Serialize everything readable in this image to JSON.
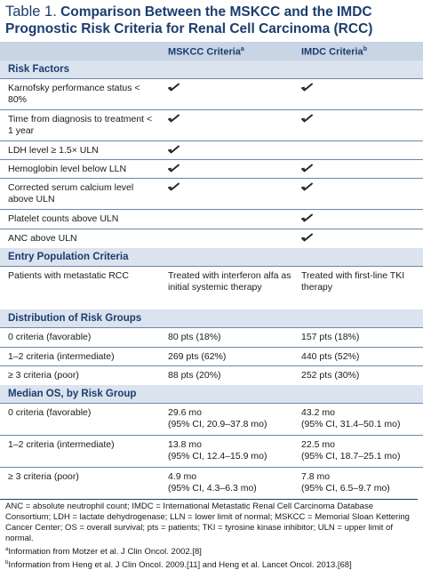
{
  "title": {
    "number": "Table 1.",
    "text": "Comparison Between the MSKCC and the IMDC Prognostic Risk Criteria for Renal Cell Carcinoma (RCC)"
  },
  "columns": {
    "col1": "MSKCC Criteria",
    "col1_sup": "a",
    "col2": "IMDC Criteria",
    "col2_sup": "b"
  },
  "sections": {
    "risk_factors": "Risk Factors",
    "entry": "Entry Population Criteria",
    "distribution": "Distribution of Risk Groups",
    "median_os": "Median OS, by Risk Group"
  },
  "risk_factors": [
    {
      "label": "Karnofsky performance status < 80%",
      "mskcc": true,
      "imdc": true
    },
    {
      "label": "Time from diagnosis to treatment < 1 year",
      "mskcc": true,
      "imdc": true
    },
    {
      "label": "LDH level ≥ 1.5× ULN",
      "mskcc": true,
      "imdc": false
    },
    {
      "label": "Hemoglobin level below LLN",
      "mskcc": true,
      "imdc": true
    },
    {
      "label": "Corrected serum calcium level above ULN",
      "mskcc": true,
      "imdc": true
    },
    {
      "label": "Platelet counts above ULN",
      "mskcc": false,
      "imdc": true
    },
    {
      "label": "ANC above ULN",
      "mskcc": false,
      "imdc": true
    }
  ],
  "entry": [
    {
      "label": "Patients with metastatic RCC",
      "mskcc": "Treated with interferon alfa as initial systemic therapy",
      "imdc": "Treated with first-line TKI therapy"
    }
  ],
  "distribution": [
    {
      "label": "0 criteria (favorable)",
      "mskcc": "80 pts (18%)",
      "imdc": "157 pts (18%)"
    },
    {
      "label": "1–2 criteria (intermediate)",
      "mskcc": "269 pts (62%)",
      "imdc": "440 pts (52%)"
    },
    {
      "label": "≥ 3 criteria (poor)",
      "mskcc": "88 pts (20%)",
      "imdc": "252 pts (30%)"
    }
  ],
  "median_os": [
    {
      "label": "0 criteria (favorable)",
      "mskcc": "29.6 mo",
      "mskcc_ci": "(95% CI, 20.9–37.8 mo)",
      "imdc": "43.2 mo",
      "imdc_ci": "(95% CI, 31.4–50.1 mo)"
    },
    {
      "label": "1–2 criteria (intermediate)",
      "mskcc": "13.8 mo",
      "mskcc_ci": "(95% CI, 12.4–15.9 mo)",
      "imdc": "22.5 mo",
      "imdc_ci": "(95% CI, 18.7–25.1 mo)"
    },
    {
      "label": "≥ 3 criteria (poor)",
      "mskcc": "4.9 mo",
      "mskcc_ci": "(95% CI, 4.3–6.3 mo)",
      "imdc": "7.8 mo",
      "imdc_ci": "(95% CI, 6.5–9.7 mo)"
    }
  ],
  "footnotes": {
    "abbrev": "ANC = absolute neutrophil count; IMDC = International Metastatic Renal Cell Carcinoma Database Consortium; LDH = lactate dehydrogenase; LLN = lower limit of normal; MSKCC = Memorial Sloan Kettering Cancer Center; OS = overall survival; pts = patients; TKI = tyrosine kinase inhibitor; ULN = upper limit of normal.",
    "a_mark": "a",
    "a_text": "Information from Motzer et al. J Clin Oncol. 2002.[8]",
    "b_mark": "b",
    "b_text": "Information from Heng et al. J Clin Oncol. 2009.[11] and Heng et al. Lancet Oncol. 2013.[68]"
  },
  "colors": {
    "header_bg": "#c9d4e4",
    "section_bg": "#dbe3ee",
    "title": "#1b3d6e"
  },
  "icons": {
    "check": "checkmark-icon"
  }
}
